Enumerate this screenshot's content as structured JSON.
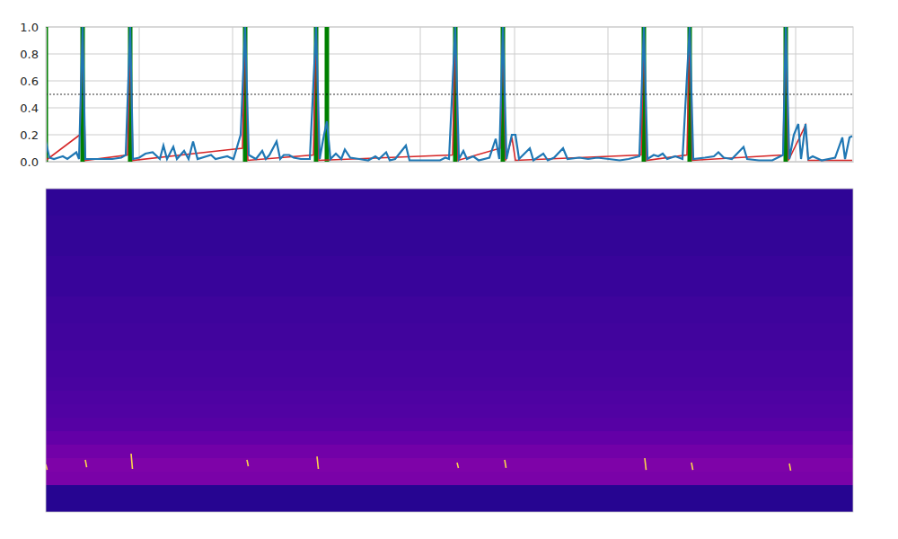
{
  "chart_data": [
    {
      "type": "line",
      "xlim": [
        0,
        899
      ],
      "xticks": [
        104,
        208,
        313,
        417,
        522,
        626,
        731,
        835
      ],
      "ylim": [
        0,
        1
      ],
      "yticks": [
        {
          "value": 0,
          "label": "0.0"
        },
        {
          "value": 0.2,
          "label": "0.2"
        },
        {
          "value": 0.4,
          "label": "0.4"
        },
        {
          "value": 0.6,
          "label": "0.6"
        },
        {
          "value": 0.8,
          "label": "0.8"
        },
        {
          "value": 1,
          "label": "1.0"
        }
      ],
      "grid": true,
      "tick_labels": "y",
      "threshold": 0.5,
      "series": [
        {
          "type": "bar",
          "color": "#008000",
          "x": [
            0,
            41,
            94,
            222,
            301,
            313,
            456,
            509,
            666,
            717,
            824
          ],
          "values": [
            1,
            1,
            1,
            1,
            1,
            1,
            1,
            1,
            1,
            1,
            1
          ]
        },
        {
          "type": "line",
          "color": "#d62728",
          "x": [
            0,
            38,
            41,
            44,
            91,
            94,
            97,
            219,
            222,
            225,
            298,
            301,
            304,
            453,
            456,
            459,
            506,
            509,
            512,
            519,
            523,
            663,
            666,
            669,
            714,
            717,
            720,
            821,
            824,
            827,
            846,
            849,
            898
          ],
          "values": [
            0.01,
            0.2,
            1.0,
            0.01,
            0.05,
            0.9,
            0.01,
            0.1,
            1.0,
            0.01,
            0.05,
            1.0,
            0.01,
            0.05,
            1.0,
            0.01,
            0.1,
            1.0,
            0.01,
            0.18,
            0.01,
            0.05,
            1.0,
            0.01,
            0.05,
            1.0,
            0.01,
            0.05,
            1.0,
            0.01,
            0.27,
            0.01,
            0.01
          ]
        },
        {
          "type": "line",
          "color": "#1f77b4",
          "x": [
            0,
            4,
            9,
            14,
            19,
            24,
            34,
            37,
            41,
            44,
            54,
            64,
            74,
            84,
            89,
            94,
            97,
            104,
            111,
            119,
            127,
            131,
            135,
            142,
            146,
            154,
            159,
            164,
            169,
            184,
            189,
            202,
            209,
            217,
            222,
            226,
            234,
            241,
            245,
            249,
            257,
            261,
            265,
            271,
            276,
            284,
            294,
            301,
            305,
            309,
            313,
            317,
            323,
            329,
            333,
            339,
            349,
            359,
            367,
            371,
            379,
            383,
            389,
            401,
            405,
            419,
            439,
            445,
            449,
            456,
            460,
            465,
            469,
            476,
            482,
            494,
            501,
            505,
            509,
            513,
            519,
            523,
            527,
            539,
            543,
            554,
            559,
            566,
            576,
            581,
            594,
            604,
            614,
            627,
            639,
            649,
            661,
            666,
            670,
            677,
            682,
            687,
            692,
            701,
            709,
            717,
            721,
            734,
            744,
            749,
            755,
            764,
            777,
            781,
            794,
            809,
            821,
            824,
            828,
            833,
            838,
            841,
            846,
            849,
            854,
            864,
            879,
            887,
            890,
            895,
            898
          ],
          "values": [
            0.15,
            0.03,
            0.02,
            0.03,
            0.04,
            0.02,
            0.07,
            0.02,
            1.0,
            0.02,
            0.02,
            0.02,
            0.02,
            0.03,
            0.05,
            1.0,
            0.02,
            0.03,
            0.06,
            0.07,
            0.02,
            0.12,
            0.02,
            0.11,
            0.02,
            0.08,
            0.02,
            0.15,
            0.02,
            0.05,
            0.02,
            0.04,
            0.02,
            0.2,
            1.0,
            0.05,
            0.02,
            0.08,
            0.02,
            0.05,
            0.15,
            0.02,
            0.05,
            0.05,
            0.03,
            0.02,
            0.02,
            1.0,
            0.02,
            0.17,
            0.3,
            0.02,
            0.06,
            0.02,
            0.09,
            0.03,
            0.02,
            0.01,
            0.04,
            0.02,
            0.07,
            0.01,
            0.02,
            0.12,
            0.01,
            0.01,
            0.01,
            0.03,
            0.02,
            1.0,
            0.02,
            0.08,
            0.02,
            0.04,
            0.01,
            0.03,
            0.17,
            0.02,
            1.0,
            0.02,
            0.2,
            0.2,
            0.02,
            0.1,
            0.01,
            0.06,
            0.01,
            0.03,
            0.1,
            0.02,
            0.03,
            0.02,
            0.03,
            0.02,
            0.01,
            0.02,
            0.04,
            1.0,
            0.02,
            0.05,
            0.04,
            0.06,
            0.02,
            0.04,
            0.02,
            1.0,
            0.02,
            0.03,
            0.04,
            0.07,
            0.03,
            0.02,
            0.11,
            0.02,
            0.01,
            0.01,
            0.05,
            1.0,
            0.02,
            0.2,
            0.28,
            0.02,
            0.28,
            0.02,
            0.04,
            0.01,
            0.03,
            0.18,
            0.02,
            0.18,
            0.19
          ]
        }
      ]
    },
    {
      "type": "heatmap",
      "xlim": [
        0,
        899
      ],
      "ylim": [
        0,
        24
      ],
      "tick_labels": false,
      "color": "plasma",
      "clim": [
        0,
        1
      ],
      "cells": [
        [
          0.06
        ],
        [
          0.06
        ],
        [
          0.07
        ],
        [
          0.07
        ],
        [
          0.07
        ],
        [
          0.08
        ],
        [
          0.08
        ],
        [
          0.08
        ],
        [
          0.09
        ],
        [
          0.09
        ],
        [
          0.1
        ],
        [
          0.1
        ],
        [
          0.11
        ],
        [
          0.11
        ],
        [
          0.12
        ],
        [
          0.13
        ],
        [
          0.14
        ],
        [
          0.15
        ],
        [
          0.18
        ],
        [
          0.22
        ],
        [
          0.25
        ],
        [
          0.24
        ],
        [
          0.04
        ],
        [
          0.04
        ]
      ],
      "calls_x": [
        0,
        44,
        95,
        224,
        302,
        458,
        511,
        667,
        719,
        828
      ],
      "calls_low": [
        3.13,
        3.33,
        3.2,
        3.4,
        3.2,
        3.27,
        3.27,
        3.13,
        3.13,
        3.07
      ],
      "calls_high": [
        3.53,
        3.87,
        4.33,
        3.87,
        4.13,
        3.67,
        3.87,
        4.0,
        3.67,
        3.6
      ]
    }
  ]
}
